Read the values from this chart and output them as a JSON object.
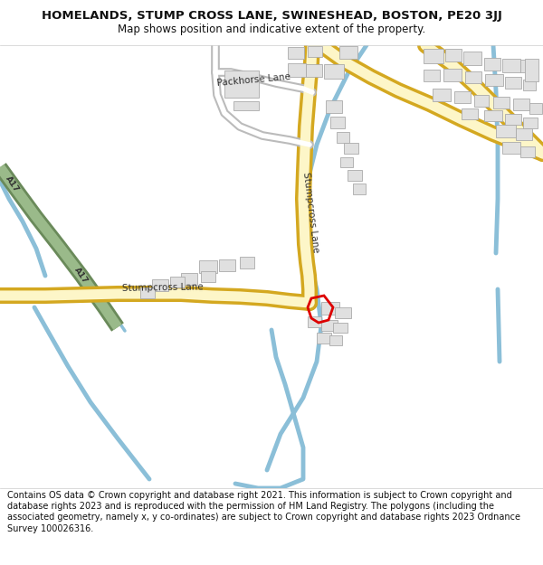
{
  "title": "HOMELANDS, STUMP CROSS LANE, SWINESHEAD, BOSTON, PE20 3JJ",
  "subtitle": "Map shows position and indicative extent of the property.",
  "footer": "Contains OS data © Crown copyright and database right 2021. This information is subject to Crown copyright and database rights 2023 and is reproduced with the permission of HM Land Registry. The polygons (including the associated geometry, namely x, y co-ordinates) are subject to Crown copyright and database rights 2023 Ordnance Survey 100026316.",
  "title_fontsize": 9.5,
  "subtitle_fontsize": 8.5,
  "footer_fontsize": 7.0,
  "road_fill": "#fdf6c8",
  "road_edge": "#d4a820",
  "road_minor_fill": "#ffffff",
  "road_minor_edge": "#b0b0b0",
  "building_fill": "#e0e0e0",
  "building_edge": "#aaaaaa",
  "water_color": "#8bbfd8",
  "a17_green": "#9aba8a",
  "a17_edge": "#6a8a5a",
  "plot_edge": "#dd0000",
  "text_color": "#333333",
  "map_bg": "#ffffff"
}
